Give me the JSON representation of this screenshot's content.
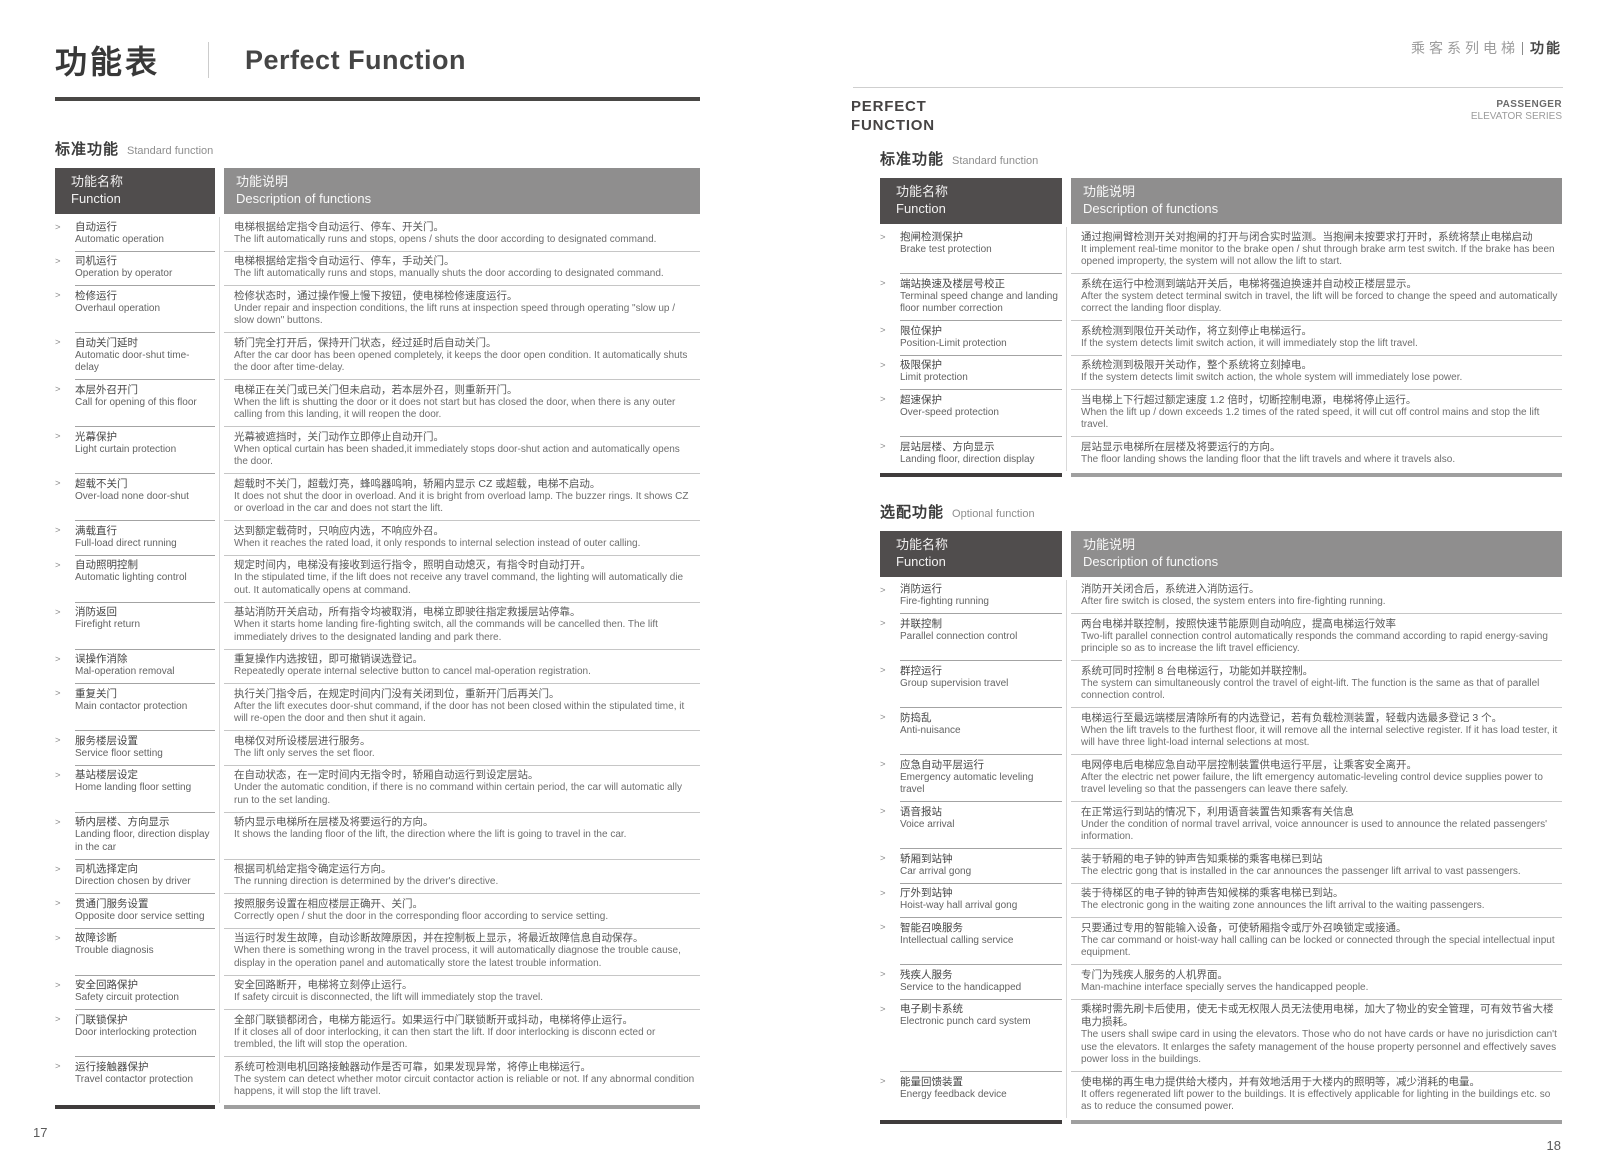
{
  "ui": {
    "marker": ">"
  },
  "page_left": {
    "title_zh": "功能表",
    "title_en": "Perfect Function",
    "section": {
      "zh": "标准功能",
      "en": "Standard function"
    },
    "table_header": {
      "name_zh": "功能名称",
      "name_en": "Function",
      "desc_zh": "功能说明",
      "desc_en": "Description of functions"
    },
    "rows": [
      {
        "name_zh": "自动运行",
        "name_en": "Automatic operation",
        "desc_zh": "电梯根据给定指令自动运行、停车、开关门。",
        "desc_en": "The lift automatically runs and stops, opens / shuts the door according to designated command."
      },
      {
        "name_zh": "司机运行",
        "name_en": "Operation by operator",
        "desc_zh": "电梯根据给定指令自动运行、停车，手动关门。",
        "desc_en": "The lift automatically runs and stops, manually shuts the door according to designated command."
      },
      {
        "name_zh": "检修运行",
        "name_en": "Overhaul operation",
        "desc_zh": "检修状态时，通过操作慢上慢下按钮，使电梯检修速度运行。",
        "desc_en": "Under repair and inspection conditions, the lift runs at inspection speed through operating \"slow up / slow down\" buttons."
      },
      {
        "name_zh": "自动关门延时",
        "name_en": "Automatic door-shut time-delay",
        "desc_zh": "轿门完全打开后，保持开门状态，经过延时后自动关门。",
        "desc_en": "After the car door has been opened completely, it keeps the door open condition. It automatically shuts the door after time-delay."
      },
      {
        "name_zh": "本层外召开门",
        "name_en": "Call for opening of this floor",
        "desc_zh": "电梯正在关门或已关门但未启动，若本层外召，则重新开门。",
        "desc_en": "When the lift is shutting the door or it does not start but has closed the door, when there is any outer calling from this landing, it will reopen the door."
      },
      {
        "name_zh": "光幕保护",
        "name_en": "Light curtain protection",
        "desc_zh": "光幕被遮挡时，关门动作立即停止自动开门。",
        "desc_en": "When optical curtain has been shaded,it immediately stops door-shut action and automatically opens the door."
      },
      {
        "name_zh": "超载不关门",
        "name_en": "Over-load none door-shut",
        "desc_zh": "超载时不关门，超载灯亮，蜂鸣器鸣响，轿厢内显示 CZ 或超载，电梯不启动。",
        "desc_en": "It does not shut the door in overload. And it is bright from overload lamp. The buzzer rings. It shows CZ or overload in the car and does not start the lift."
      },
      {
        "name_zh": "满载直行",
        "name_en": "Full-load direct running",
        "desc_zh": "达到额定载荷时，只响应内选，不响应外召。",
        "desc_en": "When it reaches the rated load, it only responds to internal selection instead of outer calling."
      },
      {
        "name_zh": "自动照明控制",
        "name_en": "Automatic lighting control",
        "desc_zh": "规定时间内，电梯没有接收到运行指令，照明自动熄灭，有指令时自动打开。",
        "desc_en": "In the stipulated time, if the lift does not receive any travel command, the lighting will automatically die out. It automatically opens at command."
      },
      {
        "name_zh": "消防返回",
        "name_en": "Firefight return",
        "desc_zh": "基站消防开关启动，所有指令均被取消，电梯立即驶往指定救援层站停靠。",
        "desc_en": "When it starts home landing fire-fighting switch, all the commands will be cancelled then. The lift immediately drives to the designated landing and park there."
      },
      {
        "name_zh": "误操作消除",
        "name_en": "Mal-operation removal",
        "desc_zh": "重复操作内选按钮，即可撤销误选登记。",
        "desc_en": "Repeatedly operate internal selective button to cancel mal-operation registration."
      },
      {
        "name_zh": "重复关门",
        "name_en": "Main contactor protection",
        "desc_zh": "执行关门指令后，在规定时间内门没有关闭到位，重新开门后再关门。",
        "desc_en": "After the lift executes door-shut command, if the door has not been closed within the stipulated time, it will re-open the door and then shut it again."
      },
      {
        "name_zh": "服务楼层设置",
        "name_en": "Service floor setting",
        "desc_zh": "电梯仅对所设楼层进行服务。",
        "desc_en": "The lift only serves the set floor."
      },
      {
        "name_zh": "基站楼层设定",
        "name_en": "Home landing floor setting",
        "desc_zh": "在自动状态，在一定时间内无指令时，轿厢自动运行到设定层站。",
        "desc_en": "Under the automatic condition, if there is no command within certain period, the car will automatic ally run to the set landing."
      },
      {
        "name_zh": "轿内层楼、方向显示",
        "name_en": "Landing floor, direction display in the car",
        "desc_zh": "轿内显示电梯所在层楼及将要运行的方向。",
        "desc_en": "It shows the landing floor of the lift, the direction where the lift is going to travel in the car."
      },
      {
        "name_zh": "司机选择定向",
        "name_en": "Direction chosen by driver",
        "desc_zh": "根据司机给定指令确定运行方向。",
        "desc_en": "The running direction is determined by the driver's directive."
      },
      {
        "name_zh": "贯通门服务设置",
        "name_en": "Opposite door service setting",
        "desc_zh": "按照服务设置在相应楼层正确开、关门。",
        "desc_en": "Correctly open / shut the door in the corresponding floor according to service setting."
      },
      {
        "name_zh": "故障诊断",
        "name_en": "Trouble diagnosis",
        "desc_zh": "当运行时发生故障，自动诊断故障原因，并在控制板上显示，将最近故障信息自动保存。",
        "desc_en": "When there is something wrong in the travel process, it will automatically diagnose the trouble cause, display in the operation panel and automatically store the latest trouble information."
      },
      {
        "name_zh": "安全回路保护",
        "name_en": "Safety circuit protection",
        "desc_zh": "安全回路断开，电梯将立刻停止运行。",
        "desc_en": "If safety circuit is disconnected, the lift will immediately stop the travel."
      },
      {
        "name_zh": "门联锁保护",
        "name_en": "Door interlocking protection",
        "desc_zh": "全部门联锁都闭合，电梯方能运行。如果运行中门联锁断开或抖动，电梯将停止运行。",
        "desc_en": "If it closes all of door interlocking, it can then start the lift. If door interlocking is disconn ected or trembled, the lift will stop the operation."
      },
      {
        "name_zh": "运行接触器保护",
        "name_en": "Travel contactor protection",
        "desc_zh": "系统可检测电机回路接触器动作是否可靠，如果发现异常，将停止电梯运行。",
        "desc_en": "The system can detect whether motor circuit contactor action is reliable or not. If any abnormal condition happens, it will stop the lift travel."
      }
    ],
    "page_number": "17"
  },
  "page_right": {
    "corner": {
      "series_zh": "乘客系列电梯",
      "tag_zh": "功能"
    },
    "title_line1": "PERFECT",
    "title_line2": "FUNCTION",
    "series_line1": "PASSENGER",
    "series_line2": "ELEVATOR SERIES",
    "standard_section": {
      "zh": "标准功能",
      "en": "Standard function"
    },
    "optional_section": {
      "zh": "选配功能",
      "en": "Optional function"
    },
    "table_header": {
      "name_zh": "功能名称",
      "name_en": "Function",
      "desc_zh": "功能说明",
      "desc_en": "Description of functions"
    },
    "standard_rows": [
      {
        "name_zh": "抱闸检测保护",
        "name_en": "Brake test protection",
        "desc_zh": "通过抱闸臂检测开关对抱闸的打开与闭合实时监测。当抱闸未按要求打开时，系统将禁止电梯启动",
        "desc_en": "It implement real-time monitor to the brake open / shut through brake arm test switch. If the brake has been opened improperty, the system will not allow the lift to start."
      },
      {
        "name_zh": "端站换速及楼层号校正",
        "name_en": "Terminal speed change and landing floor number correction",
        "desc_zh": "系统在运行中检测到端站开关后，电梯将强迫换速并自动校正楼层显示。",
        "desc_en": "After the system detect terminal switch in travel, the lift will be forced to change the speed and automatically correct the landing floor display."
      },
      {
        "name_zh": "限位保护",
        "name_en": "Position-Limit protection",
        "desc_zh": "系统检测到限位开关动作，将立刻停止电梯运行。",
        "desc_en": "If the system detects limit switch action, it will immediately stop the lift travel."
      },
      {
        "name_zh": "极限保护",
        "name_en": "Limit protection",
        "desc_zh": "系统检测到极限开关动作，整个系统将立刻掉电。",
        "desc_en": "If the system detects limit switch action, the whole system will immediately lose power."
      },
      {
        "name_zh": "超速保护",
        "name_en": "Over-speed protection",
        "desc_zh": "当电梯上下行超过额定速度 1.2 倍时，切断控制电源，电梯将停止运行。",
        "desc_en": "When the lift up / down exceeds 1.2 times of the rated speed, it will cut off control mains and stop the lift travel."
      },
      {
        "name_zh": "层站层楼、方向显示",
        "name_en": "Landing floor, direction display",
        "desc_zh": "层站显示电梯所在层楼及将要运行的方向。",
        "desc_en": "The floor landing shows the landing floor that the lift travels and where it travels also."
      }
    ],
    "optional_rows": [
      {
        "name_zh": "消防运行",
        "name_en": "Fire-fighting running",
        "desc_zh": "消防开关闭合后，系统进入消防运行。",
        "desc_en": "After fire switch is closed, the system enters into fire-fighting running."
      },
      {
        "name_zh": "并联控制",
        "name_en": "Parallel connection control",
        "desc_zh": "两台电梯并联控制，按照快速节能原则自动响应，提高电梯运行效率",
        "desc_en": "Two-lift parallel connection control automatically responds the command according to rapid energy-saving principle so as to increase the lift travel efficiency."
      },
      {
        "name_zh": "群控运行",
        "name_en": "Group supervision travel",
        "desc_zh": "系统可同时控制 8 台电梯运行，功能如并联控制。",
        "desc_en": "The system can simultaneously control the travel of eight-lift. The function is the same as that of parallel connection control."
      },
      {
        "name_zh": "防捣乱",
        "name_en": "Anti-nuisance",
        "desc_zh": "电梯运行至最远端楼层清除所有的内选登记，若有负载检测装置，轻载内选最多登记 3 个。",
        "desc_en": "When the lift travels to the furthest floor, it will remove all the internal selective register. If it has load tester, it will have three light-load internal selections at most."
      },
      {
        "name_zh": "应急自动平层运行",
        "name_en": "Emergency automatic leveling travel",
        "desc_zh": "电网停电后电梯应急自动平层控制装置供电运行平层，让乘客安全离开。",
        "desc_en": "After the electric net power failure, the lift emergency automatic-leveling control device supplies power to travel leveling so that the passengers can leave there safely."
      },
      {
        "name_zh": "语音报站",
        "name_en": "Voice arrival",
        "desc_zh": "在正常运行到站的情况下，利用语音装置告知乘客有关信息",
        "desc_en": "Under the condition of normal travel arrival, voice announcer is used to announce the related passengers' information."
      },
      {
        "name_zh": "轿厢到站钟",
        "name_en": "Car arrival gong",
        "desc_zh": "装于轿厢的电子钟的钟声告知乘梯的乘客电梯已到站",
        "desc_en": "The electric gong that is installed in the car announces the passenger lift arrival to vast passengers."
      },
      {
        "name_zh": "厅外到站钟",
        "name_en": "Hoist-way hall arrival gong",
        "desc_zh": "装于待梯区的电子钟的钟声告知候梯的乘客电梯已到站。",
        "desc_en": "The electronic gong in the waiting zone announces the lift arrival to the waiting passengers."
      },
      {
        "name_zh": "智能召唤服务",
        "name_en": "Intellectual calling service",
        "desc_zh": "只要通过专用的智能输入设备，可使轿厢指令或厅外召唤锁定或接通。",
        "desc_en": "The car command or hoist-way hall calling can be locked or connected through the special intellectual input equipment."
      },
      {
        "name_zh": "残疾人服务",
        "name_en": "Service to the handicapped",
        "desc_zh": "专门为残疾人服务的人机界面。",
        "desc_en": "Man-machine interface specially serves the handicapped people."
      },
      {
        "name_zh": "电子刷卡系统",
        "name_en": "Electronic punch card system",
        "desc_zh": "乘梯时需先刷卡后使用，使无卡或无权限人员无法使用电梯，加大了物业的安全管理，可有效节省大楼电力损耗。",
        "desc_en": "The users shall swipe card in using the elevators. Those who do not have cards or have no jurisdiction can't use the elevators. It enlarges the safety management of the house property personnel and effectively saves power loss in the buildings."
      },
      {
        "name_zh": "能量回馈装置",
        "name_en": "Energy feedback device",
        "desc_zh": "使电梯的再生电力提供给大楼内，并有效地活用于大楼内的照明等，减少消耗的电量。",
        "desc_en": "It offers regenerated lift power to the buildings. It is effectively applicable for lighting in the buildings etc. so as to reduce the consumed power."
      }
    ],
    "page_number": "18"
  }
}
